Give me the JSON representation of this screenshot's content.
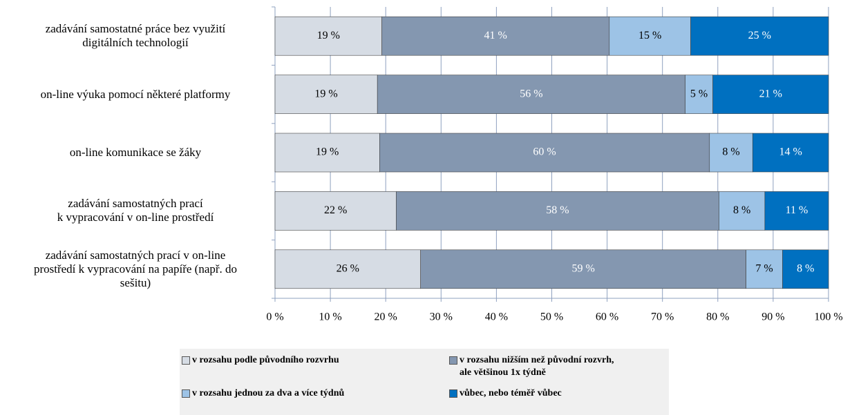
{
  "chart_data": {
    "type": "stacked-bar-horizontal",
    "categories": [
      "zadávání samostatné práce bez využití\ndigitálních technologií",
      "on-line výuka pomocí některé platformy",
      "on-line komunikace se žáky",
      "zadávání samostatných prací\nk vypracování v on-line prostředí",
      "zadávání samostatných prací v on-line\nprostředí k vypracování na papíře (např. do\nsešitu)"
    ],
    "series": [
      {
        "name": "v rozsahu podle původního rozvrhu",
        "color": "#d6dce4",
        "values": [
          19.3,
          18.5,
          18.9,
          21.9,
          26.3
        ],
        "value_labels": [
          "19 %",
          "19 %",
          "19 %",
          "22 %",
          "26 %"
        ]
      },
      {
        "name": "v rozsahu nižším než původní rozvrh,\nale většinou 1x týdně",
        "color": "#8497b0",
        "values": [
          41.1,
          55.6,
          59.6,
          58.3,
          58.8
        ],
        "value_labels": [
          "41 %",
          "56 %",
          "60 %",
          "58 %",
          "59 %"
        ]
      },
      {
        "name": "v rozsahu jednou za dva a více týdnů",
        "color": "#9dc3e6",
        "values": [
          14.7,
          5.0,
          7.8,
          8.3,
          6.6
        ],
        "value_labels": [
          "15 %",
          "5 %",
          "8 %",
          "8 %",
          "7 %"
        ]
      },
      {
        "name": "vůbec, nebo téměř vůbec",
        "color": "#0070c0",
        "values": [
          24.9,
          20.9,
          13.7,
          11.5,
          8.3
        ],
        "value_labels": [
          "25 %",
          "21 %",
          "14 %",
          "11 %",
          "8 %"
        ]
      }
    ],
    "xlim": [
      0,
      100
    ],
    "xticks": [
      {
        "value": 0,
        "label": "0 %"
      },
      {
        "value": 10,
        "label": "10 %"
      },
      {
        "value": 20,
        "label": "20 %"
      },
      {
        "value": 30,
        "label": "30 %"
      },
      {
        "value": 40,
        "label": "40 %"
      },
      {
        "value": 50,
        "label": "50 %"
      },
      {
        "value": 60,
        "label": "60 %"
      },
      {
        "value": 70,
        "label": "70 %"
      },
      {
        "value": 80,
        "label": "80 %"
      },
      {
        "value": 90,
        "label": "90 %"
      },
      {
        "value": 100,
        "label": "100 %"
      }
    ],
    "grid": true
  }
}
